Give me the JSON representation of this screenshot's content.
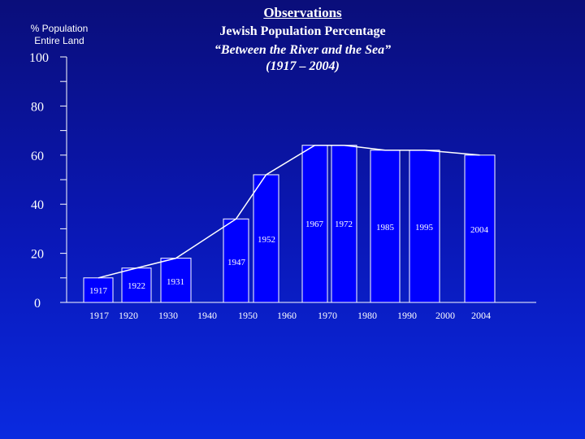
{
  "heading": {
    "top": "Observations",
    "subtitle": "Jewish Population Percentage",
    "line1": "“Between the River and the Sea”",
    "line2": "(1917 – 2004)"
  },
  "ylabel_lines": [
    "% Population",
    "Entire Land"
  ],
  "colors": {
    "background": "#0a18b8",
    "bar": "#0000ff",
    "bar_stroke": "#ffffff",
    "line": "#ffffff"
  },
  "chart_data": {
    "type": "bar",
    "title": "Jewish Population Percentage",
    "ylabel": "% Population Entire Land",
    "ylim": [
      0,
      100
    ],
    "y_ticks": [
      0,
      20,
      40,
      60,
      80,
      100
    ],
    "x_ticks": [
      "1917",
      "1920",
      "1930",
      "1940",
      "1950",
      "1960",
      "1970",
      "1980",
      "1990",
      "2000",
      "2004"
    ],
    "bars": [
      {
        "label": "1917",
        "value": 10
      },
      {
        "label": "1922",
        "value": 14
      },
      {
        "label": "1931",
        "value": 18
      },
      {
        "label": "1947",
        "value": 34
      },
      {
        "label": "1952",
        "value": 52
      },
      {
        "label": "1967",
        "value": 64
      },
      {
        "label": "1972",
        "value": 64
      },
      {
        "label": "1985",
        "value": 62
      },
      {
        "label": "1995",
        "value": 62
      },
      {
        "label": "2004",
        "value": 60
      }
    ],
    "trend_line": [
      10,
      14,
      18,
      34,
      52,
      64,
      64,
      62,
      62,
      60
    ],
    "grid": false,
    "legend": "none"
  }
}
